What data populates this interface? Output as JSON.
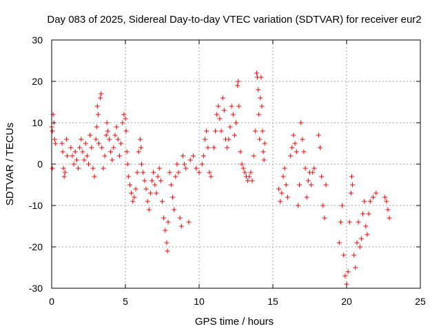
{
  "chart_data": {
    "type": "scatter",
    "title": "Day 083 of 2025, Sidereal Day-to-day VTEC variation (SDTVAR) for receiver eur2",
    "xlabel": "GPS time / hours",
    "ylabel": "SDTVAR / TECUs",
    "xlim": [
      0,
      25
    ],
    "ylim": [
      -30,
      30
    ],
    "xticks": [
      0,
      5,
      10,
      15,
      20,
      25
    ],
    "yticks": [
      -30,
      -20,
      -10,
      0,
      10,
      20,
      30
    ],
    "grid": true,
    "marker": "+",
    "color": "#ff0000",
    "series": [
      {
        "name": "SDTVAR",
        "points": [
          [
            0.0,
            9
          ],
          [
            0.05,
            8
          ],
          [
            0.1,
            12
          ],
          [
            0.15,
            10
          ],
          [
            0.2,
            6
          ],
          [
            0.25,
            5
          ],
          [
            0.05,
            -1
          ],
          [
            0.7,
            5
          ],
          [
            0.75,
            3
          ],
          [
            0.8,
            -1
          ],
          [
            0.85,
            -3
          ],
          [
            0.9,
            -2
          ],
          [
            1.0,
            6
          ],
          [
            1.05,
            2
          ],
          [
            1.3,
            4
          ],
          [
            1.4,
            2
          ],
          [
            1.5,
            0
          ],
          [
            1.6,
            3
          ],
          [
            1.7,
            1
          ],
          [
            1.8,
            -1
          ],
          [
            1.9,
            4
          ],
          [
            2.0,
            6
          ],
          [
            2.1,
            3
          ],
          [
            2.2,
            1
          ],
          [
            2.3,
            5
          ],
          [
            2.4,
            2
          ],
          [
            2.5,
            0
          ],
          [
            2.6,
            7
          ],
          [
            2.7,
            4
          ],
          [
            2.8,
            -1
          ],
          [
            2.9,
            -3
          ],
          [
            3.0,
            6
          ],
          [
            3.05,
            9
          ],
          [
            3.1,
            14
          ],
          [
            3.15,
            12
          ],
          [
            3.2,
            5
          ],
          [
            3.3,
            16
          ],
          [
            3.35,
            17
          ],
          [
            3.4,
            4
          ],
          [
            3.5,
            -1
          ],
          [
            3.6,
            2
          ],
          [
            3.7,
            7
          ],
          [
            3.75,
            10
          ],
          [
            3.8,
            8
          ],
          [
            3.9,
            6
          ],
          [
            4.0,
            3
          ],
          [
            4.1,
            1
          ],
          [
            4.2,
            4
          ],
          [
            4.3,
            7
          ],
          [
            4.4,
            9
          ],
          [
            4.5,
            6
          ],
          [
            4.6,
            2
          ],
          [
            4.7,
            5
          ],
          [
            4.8,
            10
          ],
          [
            4.9,
            12
          ],
          [
            5.0,
            11
          ],
          [
            5.05,
            8
          ],
          [
            5.1,
            3
          ],
          [
            5.15,
            0
          ],
          [
            5.2,
            -3
          ],
          [
            5.3,
            -5
          ],
          [
            5.4,
            -7
          ],
          [
            5.5,
            -9
          ],
          [
            5.6,
            -8
          ],
          [
            5.7,
            -6
          ],
          [
            5.8,
            -2
          ],
          [
            5.9,
            3
          ],
          [
            6.0,
            6
          ],
          [
            6.05,
            4
          ],
          [
            6.1,
            0
          ],
          [
            6.2,
            -2
          ],
          [
            6.3,
            -4
          ],
          [
            6.4,
            -6
          ],
          [
            6.5,
            -9
          ],
          [
            6.6,
            -11
          ],
          [
            6.7,
            -7
          ],
          [
            6.8,
            -4
          ],
          [
            6.9,
            -2
          ],
          [
            7.0,
            -5
          ],
          [
            7.1,
            -7
          ],
          [
            7.2,
            -3
          ],
          [
            7.3,
            -1
          ],
          [
            7.4,
            -4
          ],
          [
            7.5,
            -9
          ],
          [
            7.6,
            -13
          ],
          [
            7.7,
            -16
          ],
          [
            7.8,
            -19
          ],
          [
            7.85,
            -21
          ],
          [
            7.9,
            -14
          ],
          [
            8.0,
            -2
          ],
          [
            8.1,
            -5
          ],
          [
            8.2,
            -8
          ],
          [
            8.3,
            -11
          ],
          [
            8.4,
            -3
          ],
          [
            8.5,
            0
          ],
          [
            8.6,
            -2
          ],
          [
            8.7,
            -13
          ],
          [
            8.8,
            -15
          ],
          [
            8.9,
            2
          ],
          [
            9.0,
            0
          ],
          [
            9.1,
            -1
          ],
          [
            9.3,
            -14
          ],
          [
            9.4,
            1
          ],
          [
            9.6,
            2
          ],
          [
            9.8,
            -1
          ],
          [
            10.0,
            -2
          ],
          [
            10.2,
            0
          ],
          [
            10.3,
            2
          ],
          [
            10.4,
            6
          ],
          [
            10.5,
            8
          ],
          [
            10.6,
            4
          ],
          [
            10.7,
            -2
          ],
          [
            10.8,
            -3
          ],
          [
            11.0,
            4
          ],
          [
            11.1,
            8
          ],
          [
            11.2,
            12
          ],
          [
            11.3,
            14
          ],
          [
            11.4,
            11
          ],
          [
            11.5,
            8
          ],
          [
            11.6,
            16
          ],
          [
            11.7,
            13
          ],
          [
            11.8,
            6
          ],
          [
            11.9,
            4
          ],
          [
            12.0,
            6
          ],
          [
            12.1,
            9
          ],
          [
            12.2,
            14
          ],
          [
            12.3,
            12
          ],
          [
            12.4,
            7
          ],
          [
            12.5,
            10
          ],
          [
            12.6,
            19
          ],
          [
            12.65,
            20
          ],
          [
            12.7,
            14
          ],
          [
            12.8,
            3
          ],
          [
            12.9,
            0
          ],
          [
            13.0,
            -1
          ],
          [
            13.1,
            -2
          ],
          [
            13.2,
            -3
          ],
          [
            13.3,
            -4
          ],
          [
            13.4,
            -3
          ],
          [
            13.5,
            -2
          ],
          [
            13.6,
            -4
          ],
          [
            13.7,
            2
          ],
          [
            13.8,
            8
          ],
          [
            13.9,
            22
          ],
          [
            13.95,
            21
          ],
          [
            14.0,
            18
          ],
          [
            14.05,
            12
          ],
          [
            14.1,
            6
          ],
          [
            14.15,
            16
          ],
          [
            14.2,
            21
          ],
          [
            14.25,
            14
          ],
          [
            14.3,
            8
          ],
          [
            14.35,
            3
          ],
          [
            14.4,
            1
          ],
          [
            14.45,
            5
          ],
          [
            15.4,
            -6
          ],
          [
            15.5,
            -9
          ],
          [
            15.6,
            -7
          ],
          [
            15.7,
            -3
          ],
          [
            15.8,
            -1
          ],
          [
            15.9,
            -5
          ],
          [
            16.0,
            -8
          ],
          [
            16.2,
            2
          ],
          [
            16.3,
            4
          ],
          [
            16.4,
            7
          ],
          [
            16.5,
            5
          ],
          [
            16.6,
            3
          ],
          [
            16.7,
            -10
          ],
          [
            16.8,
            -5
          ],
          [
            16.9,
            10
          ],
          [
            17.0,
            6
          ],
          [
            17.1,
            3
          ],
          [
            17.2,
            -1
          ],
          [
            17.3,
            -8
          ],
          [
            17.4,
            -4
          ],
          [
            17.5,
            -2
          ],
          [
            17.6,
            -5
          ],
          [
            17.7,
            -2
          ],
          [
            17.8,
            -1
          ],
          [
            18.1,
            7
          ],
          [
            18.2,
            4
          ],
          [
            18.3,
            -3
          ],
          [
            18.4,
            -10
          ],
          [
            18.5,
            -13
          ],
          [
            18.6,
            -5
          ],
          [
            19.5,
            -19
          ],
          [
            19.6,
            -14
          ],
          [
            19.7,
            -10
          ],
          [
            19.8,
            -22
          ],
          [
            19.9,
            -27
          ],
          [
            20.0,
            -29
          ],
          [
            20.1,
            -26
          ],
          [
            20.2,
            -14
          ],
          [
            20.3,
            -7
          ],
          [
            20.35,
            -3
          ],
          [
            20.4,
            -5
          ],
          [
            20.5,
            -22
          ],
          [
            20.6,
            -25
          ],
          [
            20.7,
            -19
          ],
          [
            20.8,
            -14
          ],
          [
            20.9,
            -20
          ],
          [
            21.0,
            -18
          ],
          [
            21.1,
            -12
          ],
          [
            21.2,
            -9
          ],
          [
            21.3,
            -15
          ],
          [
            21.4,
            -17
          ],
          [
            21.5,
            -12
          ],
          [
            21.6,
            -9
          ],
          [
            21.8,
            -8
          ],
          [
            22.0,
            -7
          ],
          [
            22.6,
            -8
          ],
          [
            22.7,
            -9
          ],
          [
            22.8,
            -11
          ],
          [
            22.9,
            -13
          ]
        ]
      }
    ]
  }
}
